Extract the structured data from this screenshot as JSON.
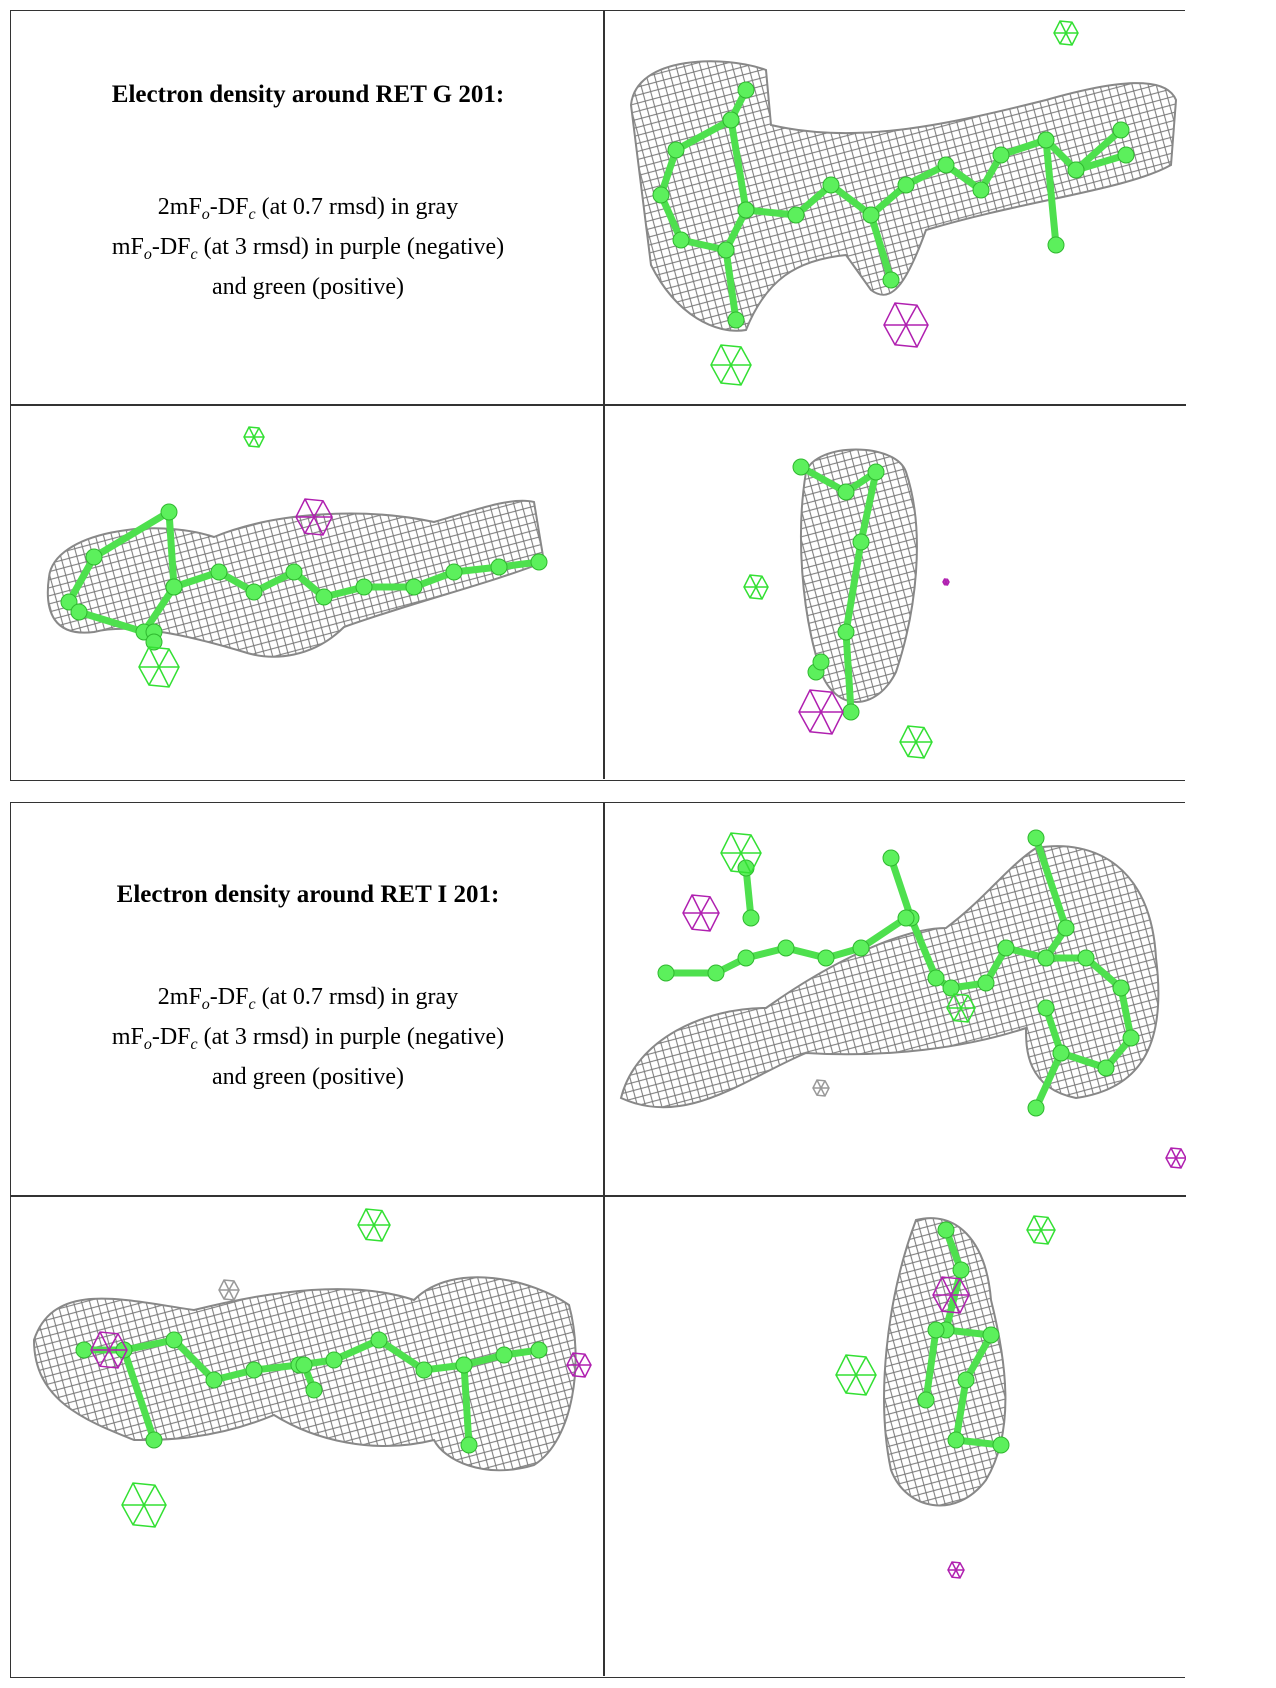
{
  "sections": [
    {
      "title": "Electron density around RET G 201:",
      "legend": [
        [
          "2mF",
          "o",
          "-DF",
          "c",
          " (at 0.7 rmsd) in gray"
        ],
        [
          "mF",
          "o",
          "-DF",
          "c",
          " (at 3 rmsd) in purple (negative)"
        ],
        [
          "and green (positive)"
        ]
      ]
    },
    {
      "title": "Electron density around RET I 201:",
      "legend": [
        [
          "2mF",
          "o",
          "-DF",
          "c",
          " (at 0.7 rmsd) in gray"
        ],
        [
          "mF",
          "o",
          "-DF",
          "c",
          " (at 3 rmsd) in purple (negative)"
        ],
        [
          "and green (positive)"
        ]
      ]
    }
  ]
}
